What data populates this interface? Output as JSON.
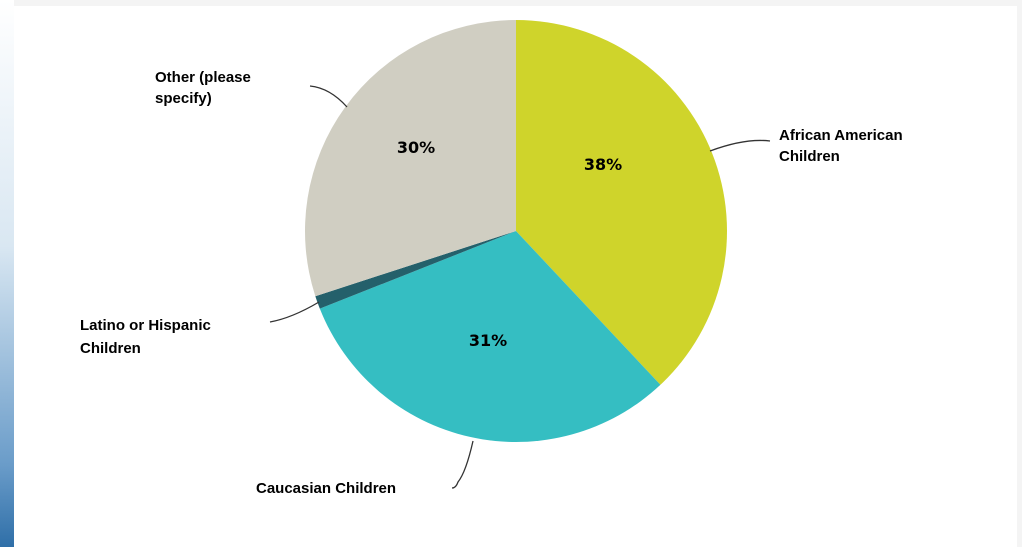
{
  "chart_data": {
    "type": "pie",
    "title": "",
    "slices": [
      {
        "label": "African American Children",
        "value": 38,
        "value_label": "38%",
        "color": "#cfd42b"
      },
      {
        "label": "Caucasian Children",
        "value": 31,
        "value_label": "31%",
        "color": "#35bec2"
      },
      {
        "label": "Latino or Hispanic Children",
        "value": 1,
        "value_label": "",
        "color": "#24606b"
      },
      {
        "label": "Other (please specify)",
        "value": 30,
        "value_label": "30%",
        "color": "#d0cec2"
      }
    ]
  }
}
